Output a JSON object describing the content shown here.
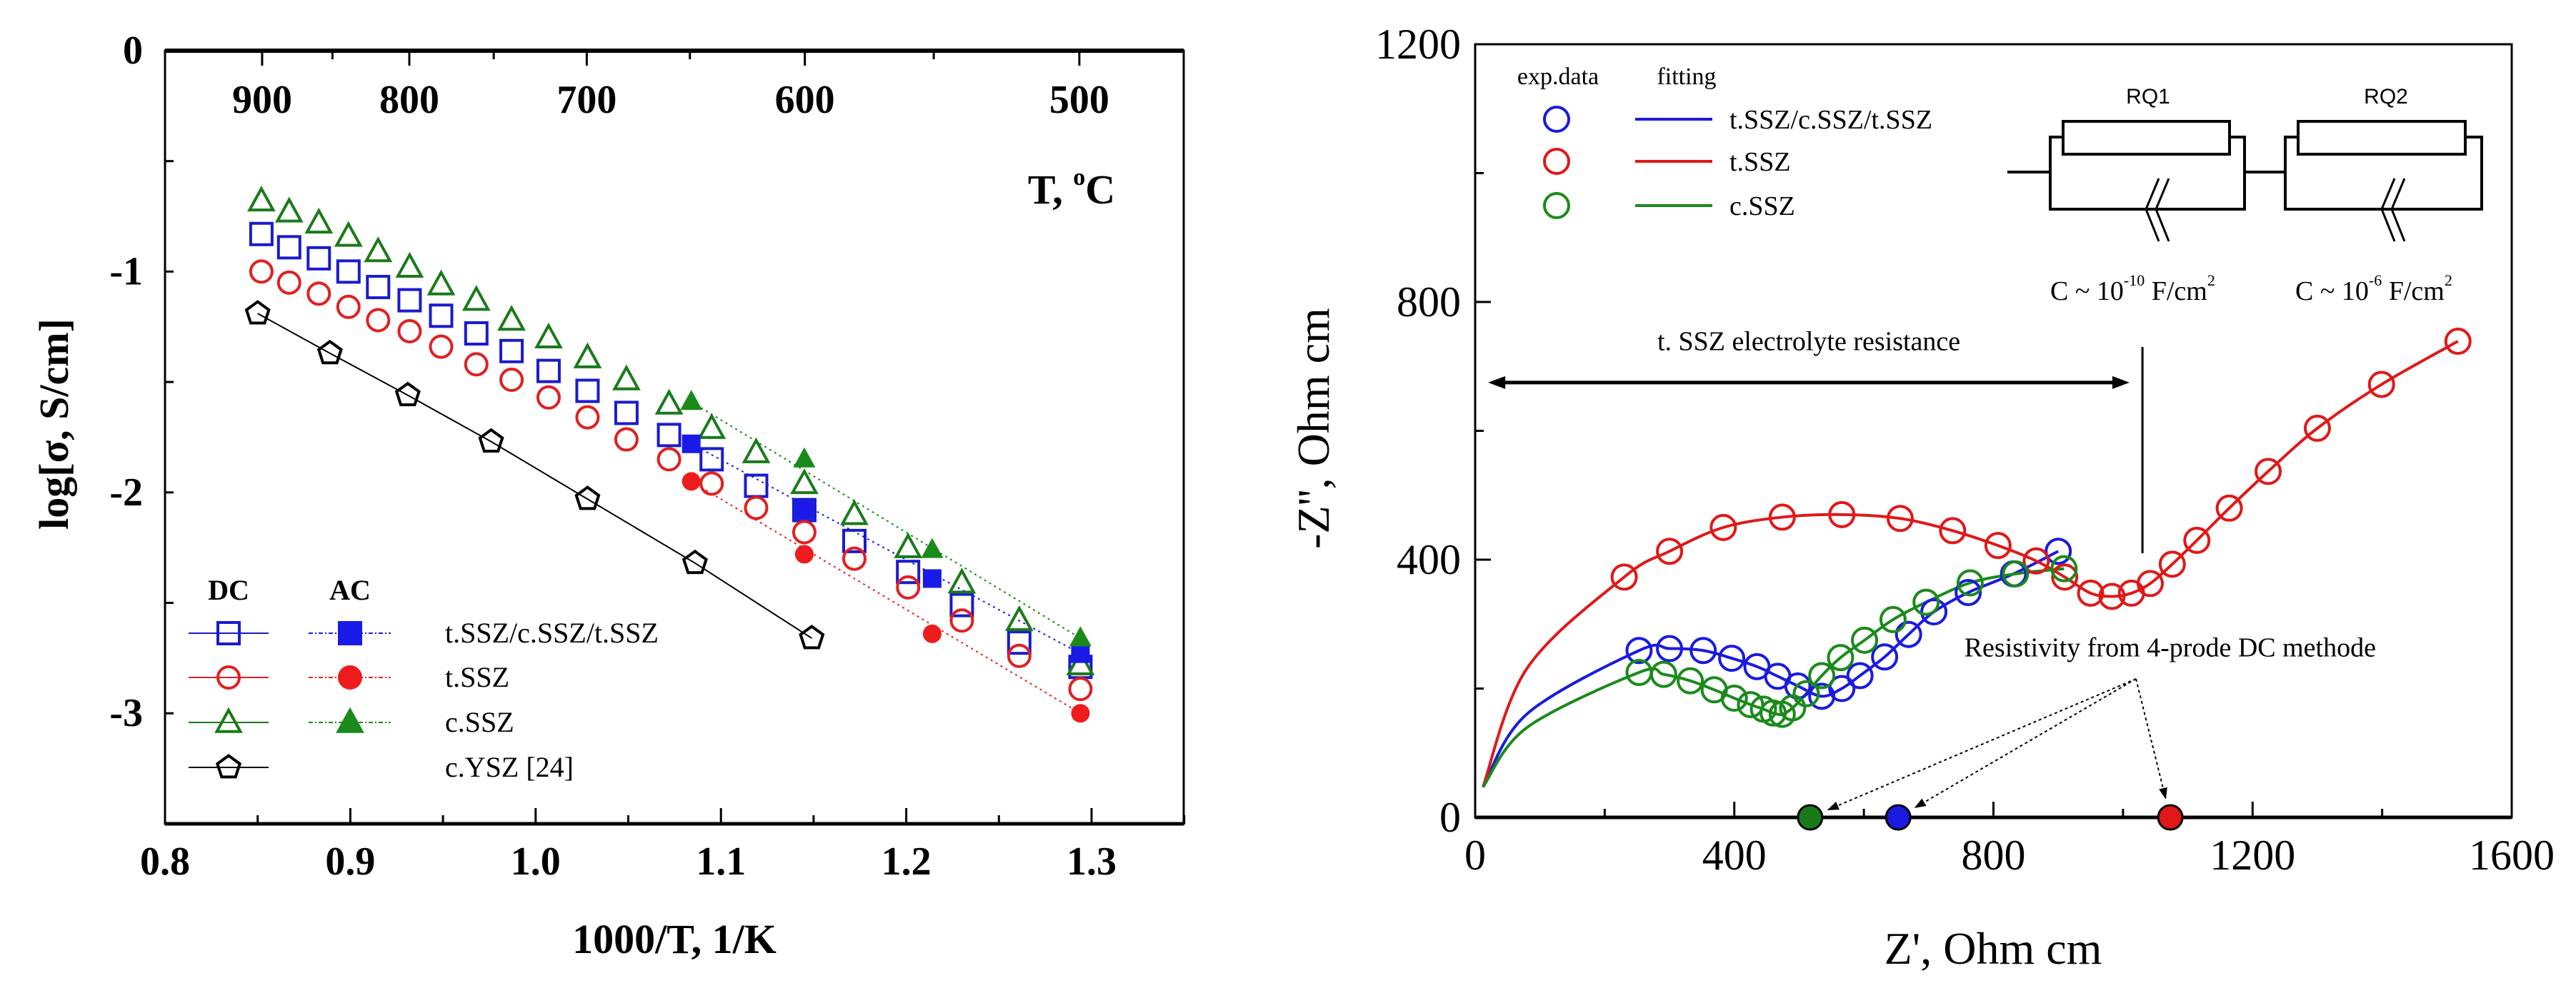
{
  "chart_data": [
    {
      "type": "scatter",
      "xlabel": "1000/T, 1/K",
      "ylabel": "log[σ, S/cm]",
      "xlim": [
        0.8,
        1.35
      ],
      "ylim": [
        -3.5,
        0
      ],
      "xticks": [
        "0.8",
        "0.9",
        "1.0",
        "1.1",
        "1.2",
        "1.3"
      ],
      "xtick_values": [
        0.8,
        0.9,
        1.0,
        1.1,
        1.2,
        1.3
      ],
      "yticks": [
        "0",
        "-1",
        "-2",
        "-3"
      ],
      "ytick_values": [
        0,
        -1,
        -2,
        -3
      ],
      "top_axis": {
        "label": "T, ",
        "unit_sup": "o",
        "unit": "C",
        "ticks": [
          "900",
          "800",
          "700",
          "600",
          "500"
        ],
        "tick_values": [
          900,
          800,
          700,
          600,
          500
        ]
      },
      "legend": {
        "placement": "bottom-left",
        "dc_header": "DC",
        "ac_header": "AC"
      },
      "series": [
        {
          "name": "t.SSZ/c.SSZ/t.SSZ",
          "method": "DC",
          "marker": "open-square",
          "color": "#1a1ad0",
          "x": [
            0.852,
            0.867,
            0.883,
            0.899,
            0.915,
            0.932,
            0.949,
            0.968,
            0.987,
            1.007,
            1.028,
            1.049,
            1.072,
            1.095,
            1.119,
            1.145,
            1.172,
            1.201,
            1.23,
            1.261,
            1.294
          ],
          "y": [
            -0.83,
            -0.89,
            -0.94,
            -1.0,
            -1.07,
            -1.13,
            -1.2,
            -1.28,
            -1.36,
            -1.45,
            -1.54,
            -1.64,
            -1.74,
            -1.85,
            -1.97,
            -2.08,
            -2.22,
            -2.36,
            -2.51,
            -2.68,
            -2.79
          ]
        },
        {
          "name": "t.SSZ",
          "method": "DC",
          "marker": "open-circle",
          "color": "#e02020",
          "x": [
            0.852,
            0.867,
            0.883,
            0.899,
            0.915,
            0.932,
            0.949,
            0.968,
            0.987,
            1.007,
            1.028,
            1.049,
            1.072,
            1.095,
            1.119,
            1.145,
            1.172,
            1.201,
            1.23,
            1.261,
            1.294
          ],
          "y": [
            -1.0,
            -1.05,
            -1.1,
            -1.16,
            -1.22,
            -1.27,
            -1.34,
            -1.42,
            -1.49,
            -1.57,
            -1.66,
            -1.76,
            -1.85,
            -1.96,
            -2.07,
            -2.18,
            -2.3,
            -2.43,
            -2.58,
            -2.74,
            -2.89
          ]
        },
        {
          "name": "c.SSZ",
          "method": "DC",
          "marker": "open-triangle",
          "color": "#1a7a1a",
          "x": [
            0.852,
            0.867,
            0.883,
            0.899,
            0.915,
            0.932,
            0.949,
            0.968,
            0.987,
            1.007,
            1.028,
            1.049,
            1.072,
            1.095,
            1.119,
            1.145,
            1.172,
            1.201,
            1.23,
            1.261,
            1.294
          ],
          "y": [
            -0.68,
            -0.73,
            -0.78,
            -0.84,
            -0.91,
            -0.98,
            -1.06,
            -1.13,
            -1.22,
            -1.3,
            -1.39,
            -1.49,
            -1.6,
            -1.71,
            -1.82,
            -1.96,
            -2.1,
            -2.25,
            -2.41,
            -2.58,
            -2.78
          ]
        },
        {
          "name": "c.YSZ [24]",
          "method": "DC",
          "marker": "open-pentagon",
          "color": "#000000",
          "x": [
            0.85,
            0.889,
            0.931,
            0.976,
            1.028,
            1.086,
            1.149
          ],
          "y": [
            -1.19,
            -1.37,
            -1.56,
            -1.77,
            -2.03,
            -2.32,
            -2.66
          ]
        },
        {
          "name": "t.SSZ/c.SSZ/t.SSZ",
          "method": "AC",
          "marker": "filled-square",
          "color": "#1a1ae8",
          "x": [
            1.084,
            1.145,
            1.214,
            1.294
          ],
          "y": [
            -1.78,
            -2.08,
            -2.39,
            -2.73
          ]
        },
        {
          "name": "t.SSZ",
          "method": "AC",
          "marker": "filled-circle",
          "color": "#ee1c1c",
          "x": [
            1.084,
            1.145,
            1.214,
            1.294
          ],
          "y": [
            -1.95,
            -2.28,
            -2.64,
            -3.0
          ]
        },
        {
          "name": "c.SSZ",
          "method": "AC",
          "marker": "filled-triangle",
          "color": "#1a8a1a",
          "x": [
            1.084,
            1.145,
            1.214,
            1.294
          ],
          "y": [
            -1.59,
            -1.85,
            -2.26,
            -2.66
          ]
        }
      ]
    },
    {
      "type": "scatter",
      "xlabel": "Z', Ohm cm",
      "ylabel": "-Z'', Ohm cm",
      "xlim": [
        0,
        1600
      ],
      "ylim": [
        0,
        1200
      ],
      "xticks": [
        "0",
        "400",
        "800",
        "1200",
        "1600"
      ],
      "xtick_values": [
        0,
        400,
        800,
        1200,
        1600
      ],
      "yticks": [
        "0",
        "400",
        "800",
        "1200"
      ],
      "ytick_values": [
        0,
        400,
        800,
        1200
      ],
      "legend": {
        "placement": "top-left",
        "exp_header": "exp.data",
        "fit_header": "fitting"
      },
      "series": [
        {
          "name": "t.SSZ/c.SSZ/t.SSZ",
          "color": "#1a1ae0",
          "x": [
            253,
            300,
            352,
            396,
            435,
            467,
            498,
            535,
            566,
            594,
            632,
            669,
            708,
            761,
            831,
            900
          ],
          "y": [
            259,
            262,
            259,
            247,
            234,
            219,
            204,
            188,
            200,
            220,
            249,
            284,
            319,
            349,
            378,
            413
          ]
        },
        {
          "name": "t.SSZ",
          "color": "#e01818",
          "x": [
            230,
            300,
            383,
            474,
            566,
            656,
            737,
            807,
            866,
            910,
            950,
            983,
            1013,
            1042,
            1076,
            1114,
            1164,
            1224,
            1300,
            1399,
            1517
          ],
          "y": [
            373,
            413,
            450,
            466,
            470,
            464,
            445,
            422,
            398,
            373,
            348,
            343,
            348,
            363,
            393,
            430,
            480,
            537,
            604,
            672,
            739
          ]
        },
        {
          "name": "c.SSZ",
          "color": "#1a8a1a",
          "x": [
            253,
            291,
            332,
            369,
            400,
            425,
            445,
            460,
            474,
            490,
            511,
            535,
            564,
            601,
            645,
            696,
            764,
            834,
            909
          ],
          "y": [
            225,
            222,
            212,
            198,
            185,
            175,
            168,
            162,
            160,
            170,
            192,
            220,
            248,
            275,
            307,
            334,
            364,
            378,
            386
          ]
        }
      ],
      "fit_start": [
        12,
        47
      ],
      "dc_resistivity": {
        "label": "Resistivity from 4-prode DC methode",
        "values": [
          {
            "name": "c.SSZ",
            "x": 517,
            "color": "#1a7a1a"
          },
          {
            "name": "t.SSZ/c.SSZ/t.SSZ",
            "x": 653,
            "color": "#1a1ae0"
          },
          {
            "name": "t.SSZ",
            "x": 1073,
            "color": "#e01818"
          }
        ]
      },
      "annotation_resistance": {
        "label": "t. SSZ electrolyte resistance",
        "from": 20,
        "to": 1010,
        "y": 675
      },
      "circuit": {
        "elements": [
          "RQ1",
          "RQ2"
        ],
        "capacitance": [
          {
            "prefix": "C ~ 10",
            "exp": "-10",
            "unit": " F/cm",
            "unit_sup": "2"
          },
          {
            "prefix": "C ~ 10",
            "exp": "-6",
            "unit": " F/cm",
            "unit_sup": "2"
          }
        ]
      }
    }
  ]
}
